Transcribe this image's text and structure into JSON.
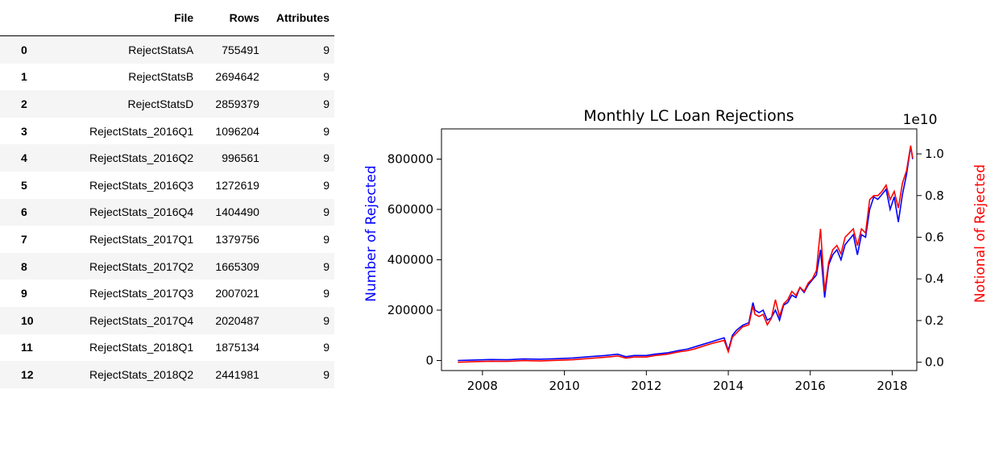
{
  "table": {
    "columns": [
      "File",
      "Rows",
      "Attributes"
    ],
    "rows": [
      {
        "index": "0",
        "file": "RejectStatsA",
        "rows": "755491",
        "attributes": "9"
      },
      {
        "index": "1",
        "file": "RejectStatsB",
        "rows": "2694642",
        "attributes": "9"
      },
      {
        "index": "2",
        "file": "RejectStatsD",
        "rows": "2859379",
        "attributes": "9"
      },
      {
        "index": "3",
        "file": "RejectStats_2016Q1",
        "rows": "1096204",
        "attributes": "9"
      },
      {
        "index": "4",
        "file": "RejectStats_2016Q2",
        "rows": "996561",
        "attributes": "9"
      },
      {
        "index": "5",
        "file": "RejectStats_2016Q3",
        "rows": "1272619",
        "attributes": "9"
      },
      {
        "index": "6",
        "file": "RejectStats_2016Q4",
        "rows": "1404490",
        "attributes": "9"
      },
      {
        "index": "7",
        "file": "RejectStats_2017Q1",
        "rows": "1379756",
        "attributes": "9"
      },
      {
        "index": "8",
        "file": "RejectStats_2017Q2",
        "rows": "1665309",
        "attributes": "9"
      },
      {
        "index": "9",
        "file": "RejectStats_2017Q3",
        "rows": "2007021",
        "attributes": "9"
      },
      {
        "index": "10",
        "file": "RejectStats_2017Q4",
        "rows": "2020487",
        "attributes": "9"
      },
      {
        "index": "11",
        "file": "RejectStats_2018Q1",
        "rows": "1875134",
        "attributes": "9"
      },
      {
        "index": "12",
        "file": "RejectStats_2018Q2",
        "rows": "2441981",
        "attributes": "9"
      }
    ]
  },
  "chart_data": {
    "type": "line",
    "title": "Monthly LC Loan Rejections",
    "ylabel": "Number of Rejected",
    "y2label": "Notional of Rejected",
    "y2_offset_text": "1e10",
    "xlim": [
      2007.0,
      2018.6
    ],
    "ylim": [
      -40000,
      920000
    ],
    "y2lim": [
      -0.04,
      1.12
    ],
    "xticks": [
      2008,
      2010,
      2012,
      2014,
      2016,
      2018
    ],
    "yticks": [
      0,
      200000,
      400000,
      600000,
      800000
    ],
    "ytick_labels": [
      "0",
      "200000",
      "400000",
      "600000",
      "800000"
    ],
    "y2ticks": [
      0.0,
      0.2,
      0.4,
      0.6,
      0.8,
      1.0
    ],
    "y2tick_labels": [
      "0.0",
      "0.2",
      "0.4",
      "0.6",
      "0.8",
      "1.0"
    ],
    "grid": false,
    "colors": {
      "count": "#0000ff",
      "notional": "#ff0000"
    },
    "series": [
      {
        "name": "Number of Rejected",
        "axis": "left",
        "x": [
          2007.4,
          2007.8,
          2008.2,
          2008.6,
          2009.0,
          2009.4,
          2009.8,
          2010.2,
          2010.6,
          2011.0,
          2011.3,
          2011.5,
          2011.7,
          2012.0,
          2012.2,
          2012.5,
          2012.8,
          2013.0,
          2013.2,
          2013.4,
          2013.6,
          2013.8,
          2013.9,
          2014.0,
          2014.1,
          2014.2,
          2014.35,
          2014.5,
          2014.6,
          2014.65,
          2014.75,
          2014.85,
          2014.95,
          2015.05,
          2015.15,
          2015.25,
          2015.35,
          2015.45,
          2015.55,
          2015.65,
          2015.75,
          2015.85,
          2015.95,
          2016.05,
          2016.15,
          2016.25,
          2016.35,
          2016.45,
          2016.55,
          2016.65,
          2016.75,
          2016.85,
          2016.95,
          2017.05,
          2017.15,
          2017.25,
          2017.35,
          2017.45,
          2017.55,
          2017.65,
          2017.75,
          2017.85,
          2017.95,
          2018.05,
          2018.15,
          2018.25,
          2018.35,
          2018.45,
          2018.5
        ],
        "y": [
          0,
          2000,
          4000,
          3000,
          6000,
          5000,
          7000,
          10000,
          15000,
          20000,
          25000,
          15000,
          20000,
          20000,
          25000,
          30000,
          40000,
          45000,
          55000,
          65000,
          75000,
          85000,
          90000,
          40000,
          100000,
          120000,
          140000,
          150000,
          230000,
          200000,
          190000,
          200000,
          160000,
          170000,
          200000,
          160000,
          220000,
          230000,
          260000,
          250000,
          290000,
          270000,
          300000,
          320000,
          340000,
          440000,
          250000,
          380000,
          420000,
          440000,
          400000,
          460000,
          480000,
          500000,
          420000,
          500000,
          490000,
          600000,
          650000,
          640000,
          660000,
          680000,
          600000,
          650000,
          550000,
          660000,
          740000,
          850000,
          800000
        ]
      },
      {
        "name": "Notional of Rejected",
        "axis": "right",
        "x": [
          2007.4,
          2007.8,
          2008.2,
          2008.6,
          2009.0,
          2009.4,
          2009.8,
          2010.2,
          2010.6,
          2011.0,
          2011.3,
          2011.5,
          2011.7,
          2012.0,
          2012.2,
          2012.5,
          2012.8,
          2013.0,
          2013.2,
          2013.4,
          2013.6,
          2013.8,
          2013.9,
          2014.0,
          2014.1,
          2014.2,
          2014.35,
          2014.5,
          2014.6,
          2014.65,
          2014.75,
          2014.85,
          2014.95,
          2015.05,
          2015.15,
          2015.25,
          2015.35,
          2015.45,
          2015.55,
          2015.65,
          2015.75,
          2015.85,
          2015.95,
          2016.05,
          2016.15,
          2016.25,
          2016.35,
          2016.45,
          2016.55,
          2016.65,
          2016.75,
          2016.85,
          2016.95,
          2017.05,
          2017.15,
          2017.25,
          2017.35,
          2017.45,
          2017.55,
          2017.65,
          2017.75,
          2017.85,
          2017.95,
          2018.05,
          2018.15,
          2018.25,
          2018.35,
          2018.45,
          2018.5
        ],
        "y": [
          0.0,
          0.003,
          0.005,
          0.004,
          0.008,
          0.006,
          0.009,
          0.012,
          0.018,
          0.024,
          0.03,
          0.02,
          0.025,
          0.025,
          0.032,
          0.038,
          0.05,
          0.055,
          0.065,
          0.078,
          0.09,
          0.1,
          0.105,
          0.05,
          0.12,
          0.14,
          0.17,
          0.18,
          0.27,
          0.23,
          0.22,
          0.23,
          0.18,
          0.21,
          0.3,
          0.22,
          0.28,
          0.3,
          0.34,
          0.32,
          0.36,
          0.34,
          0.38,
          0.4,
          0.44,
          0.64,
          0.34,
          0.48,
          0.54,
          0.56,
          0.52,
          0.6,
          0.62,
          0.64,
          0.56,
          0.64,
          0.62,
          0.78,
          0.8,
          0.8,
          0.82,
          0.85,
          0.78,
          0.82,
          0.74,
          0.86,
          0.92,
          1.04,
          0.98
        ]
      }
    ]
  }
}
